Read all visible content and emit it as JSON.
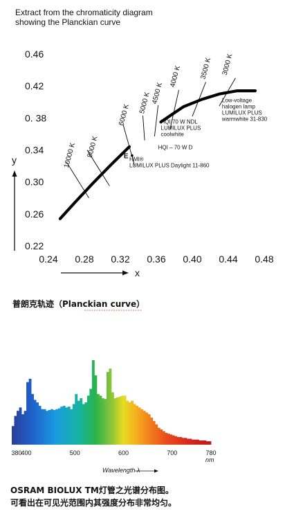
{
  "chart_data": [
    {
      "type": "line",
      "title_lines": [
        "Extract from the chromaticity diagram",
        "showing the Planckian curve"
      ],
      "xlabel": "x",
      "ylabel": "y",
      "xlim": [
        0.24,
        0.48
      ],
      "ylim": [
        0.22,
        0.46
      ],
      "x_ticks": [
        "0.24",
        "0.28",
        "0.32",
        "0.36",
        "0.40",
        "0.44",
        "0.48"
      ],
      "y_ticks": [
        "0.46",
        "0.42",
        "0.38",
        "0.34",
        "0.30",
        "0.26",
        "0.22"
      ],
      "y_tick_display": [
        "0.46",
        "0.42",
        "0. 38",
        "0.34",
        "0.30",
        "0.26",
        "0.22"
      ],
      "curve": {
        "x": [
          0.253,
          0.27,
          0.29,
          0.31,
          0.33,
          0.346,
          0.365,
          0.39,
          0.41,
          0.43,
          0.45,
          0.47
        ],
        "y": [
          0.254,
          0.275,
          0.299,
          0.322,
          0.344,
          0.36,
          0.375,
          0.394,
          0.403,
          0.41,
          0.414,
          0.414
        ]
      },
      "curve_gap": [
        0.342,
        0.348
      ],
      "isotemperature_lines": [
        {
          "label": "10000 K",
          "line": [
            [
              0.26,
              0.325
            ],
            [
              0.285,
              0.28
            ]
          ],
          "label_at": [
            0.262,
            0.317
          ]
        },
        {
          "label": "8000 K",
          "line": [
            [
              0.283,
              0.34
            ],
            [
              0.308,
              0.295
            ]
          ],
          "label_at": [
            0.288,
            0.33
          ]
        },
        {
          "label": "6000 K",
          "line": [
            [
              0.323,
              0.372
            ],
            [
              0.336,
              0.32
            ]
          ],
          "label_at": [
            0.323,
            0.37
          ]
        },
        {
          "label": "5000 K",
          "line": [
            [
              0.345,
              0.383
            ],
            [
              0.347,
              0.352
            ]
          ],
          "label_at": [
            0.346,
            0.385
          ]
        },
        {
          "label": "4500 K",
          "line": [
            [
              0.362,
              0.396
            ],
            [
              0.358,
              0.357
            ]
          ],
          "label_at": [
            0.36,
            0.397
          ]
        },
        {
          "label": "4000 K",
          "line": [
            [
              0.385,
              0.415
            ],
            [
              0.375,
              0.365
            ]
          ],
          "label_at": [
            0.38,
            0.418
          ]
        },
        {
          "label": "3500 K",
          "line": [
            [
              0.415,
              0.425
            ],
            [
              0.4,
              0.382
            ]
          ],
          "label_at": [
            0.414,
            0.428
          ]
        },
        {
          "label": "3000 K",
          "line": [
            [
              0.448,
              0.43
            ],
            [
              0.43,
              0.395
            ]
          ],
          "label_at": [
            0.438,
            0.433
          ]
        }
      ],
      "points": [
        {
          "label": "E",
          "x": 0.333,
          "y": 0.333
        }
      ],
      "annotations": [
        {
          "lines": [
            "HMI®",
            "LUMILUX PLUS Daylight 11-860"
          ],
          "x": 0.33,
          "y": 0.326
        },
        {
          "lines": [
            "HQI – 70 W D"
          ],
          "x": 0.362,
          "y": 0.341
        },
        {
          "lines": [
            "HQI 70 W NDL",
            "LUMILUX PLUS",
            "coolwhite"
          ],
          "x": 0.365,
          "y": 0.373
        },
        {
          "lines": [
            "Low-voltage",
            "halogen lamp",
            "LUMILUX PLUS",
            "warmwhite 31-830"
          ],
          "x": 0.433,
          "y": 0.4
        }
      ],
      "grid": false
    },
    {
      "type": "bar",
      "title": "",
      "xlabel": "Wavelength λ",
      "x_unit": "nm",
      "x_ticks": [
        "380",
        "400",
        "500",
        "600",
        "700",
        "780"
      ],
      "xlim": [
        370,
        780
      ],
      "ylim": [
        0,
        100
      ],
      "x": [
        370,
        375,
        380,
        385,
        390,
        395,
        400,
        405,
        410,
        415,
        420,
        425,
        430,
        435,
        440,
        445,
        450,
        455,
        460,
        465,
        470,
        475,
        480,
        485,
        490,
        495,
        500,
        505,
        510,
        515,
        520,
        525,
        530,
        535,
        540,
        545,
        550,
        555,
        560,
        565,
        570,
        575,
        580,
        585,
        590,
        595,
        600,
        605,
        610,
        615,
        620,
        625,
        630,
        635,
        640,
        645,
        650,
        655,
        660,
        665,
        670,
        675,
        680,
        685,
        690,
        695,
        700,
        705,
        710,
        715,
        720,
        725,
        730,
        735,
        740,
        745,
        750,
        755,
        760,
        765,
        770,
        775
      ],
      "values": [
        22,
        34,
        40,
        44,
        36,
        40,
        74,
        78,
        60,
        53,
        50,
        46,
        42,
        42,
        40,
        41,
        42,
        41,
        42,
        43,
        45,
        46,
        44,
        45,
        42,
        48,
        60,
        52,
        55,
        48,
        50,
        58,
        66,
        100,
        82,
        60,
        58,
        55,
        54,
        86,
        90,
        62,
        55,
        56,
        57,
        58,
        58,
        52,
        50,
        52,
        48,
        46,
        44,
        42,
        40,
        38,
        36,
        32,
        28,
        24,
        20,
        18,
        16,
        14,
        13,
        12,
        11,
        10,
        9,
        9,
        8,
        8,
        7,
        7,
        6,
        6,
        6,
        5,
        5,
        5,
        4,
        4
      ],
      "grid": false
    }
  ],
  "caption1": "普朗克轨迹（Planckian curve）",
  "caption2_lines": [
    "OSRAM BIOLUX TM灯管之光谱分布图。",
    "可看出在可见光范围内其强度分布非常均匀。"
  ]
}
